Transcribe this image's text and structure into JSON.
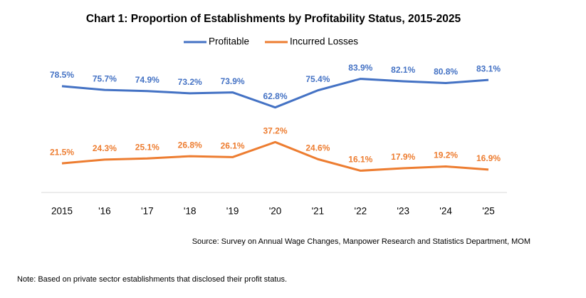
{
  "chart_data": {
    "type": "line",
    "title": "Chart 1: Proportion of Establishments by Profitability Status, 2015-2025",
    "categories": [
      "2015",
      "'16",
      "'17",
      "'18",
      "'19",
      "'20",
      "'21",
      "'22",
      "'23",
      "'24",
      "'25"
    ],
    "series": [
      {
        "name": "Profitable",
        "color": "#4472c4",
        "values": [
          78.5,
          75.7,
          74.9,
          73.2,
          73.9,
          62.8,
          75.4,
          83.9,
          82.1,
          80.8,
          83.1
        ],
        "value_labels": [
          "78.5%",
          "75.7%",
          "74.9%",
          "73.2%",
          "73.9%",
          "62.8%",
          "75.4%",
          "83.9%",
          "82.1%",
          "80.8%",
          "83.1%"
        ]
      },
      {
        "name": "Incurred Losses",
        "color": "#ed7d31",
        "values": [
          21.5,
          24.3,
          25.1,
          26.8,
          26.1,
          37.2,
          24.6,
          16.1,
          17.9,
          19.2,
          16.9
        ],
        "value_labels": [
          "21.5%",
          "24.3%",
          "25.1%",
          "26.8%",
          "26.1%",
          "37.2%",
          "24.6%",
          "16.1%",
          "17.9%",
          "19.2%",
          "16.9%"
        ]
      }
    ],
    "ylim": [
      0,
      100
    ],
    "legend": "top",
    "source": "Source: Survey on Annual Wage Changes, Manpower Research and Statistics Department, MOM",
    "note": "Note: Based on private sector establishments that disclosed their profit status."
  }
}
